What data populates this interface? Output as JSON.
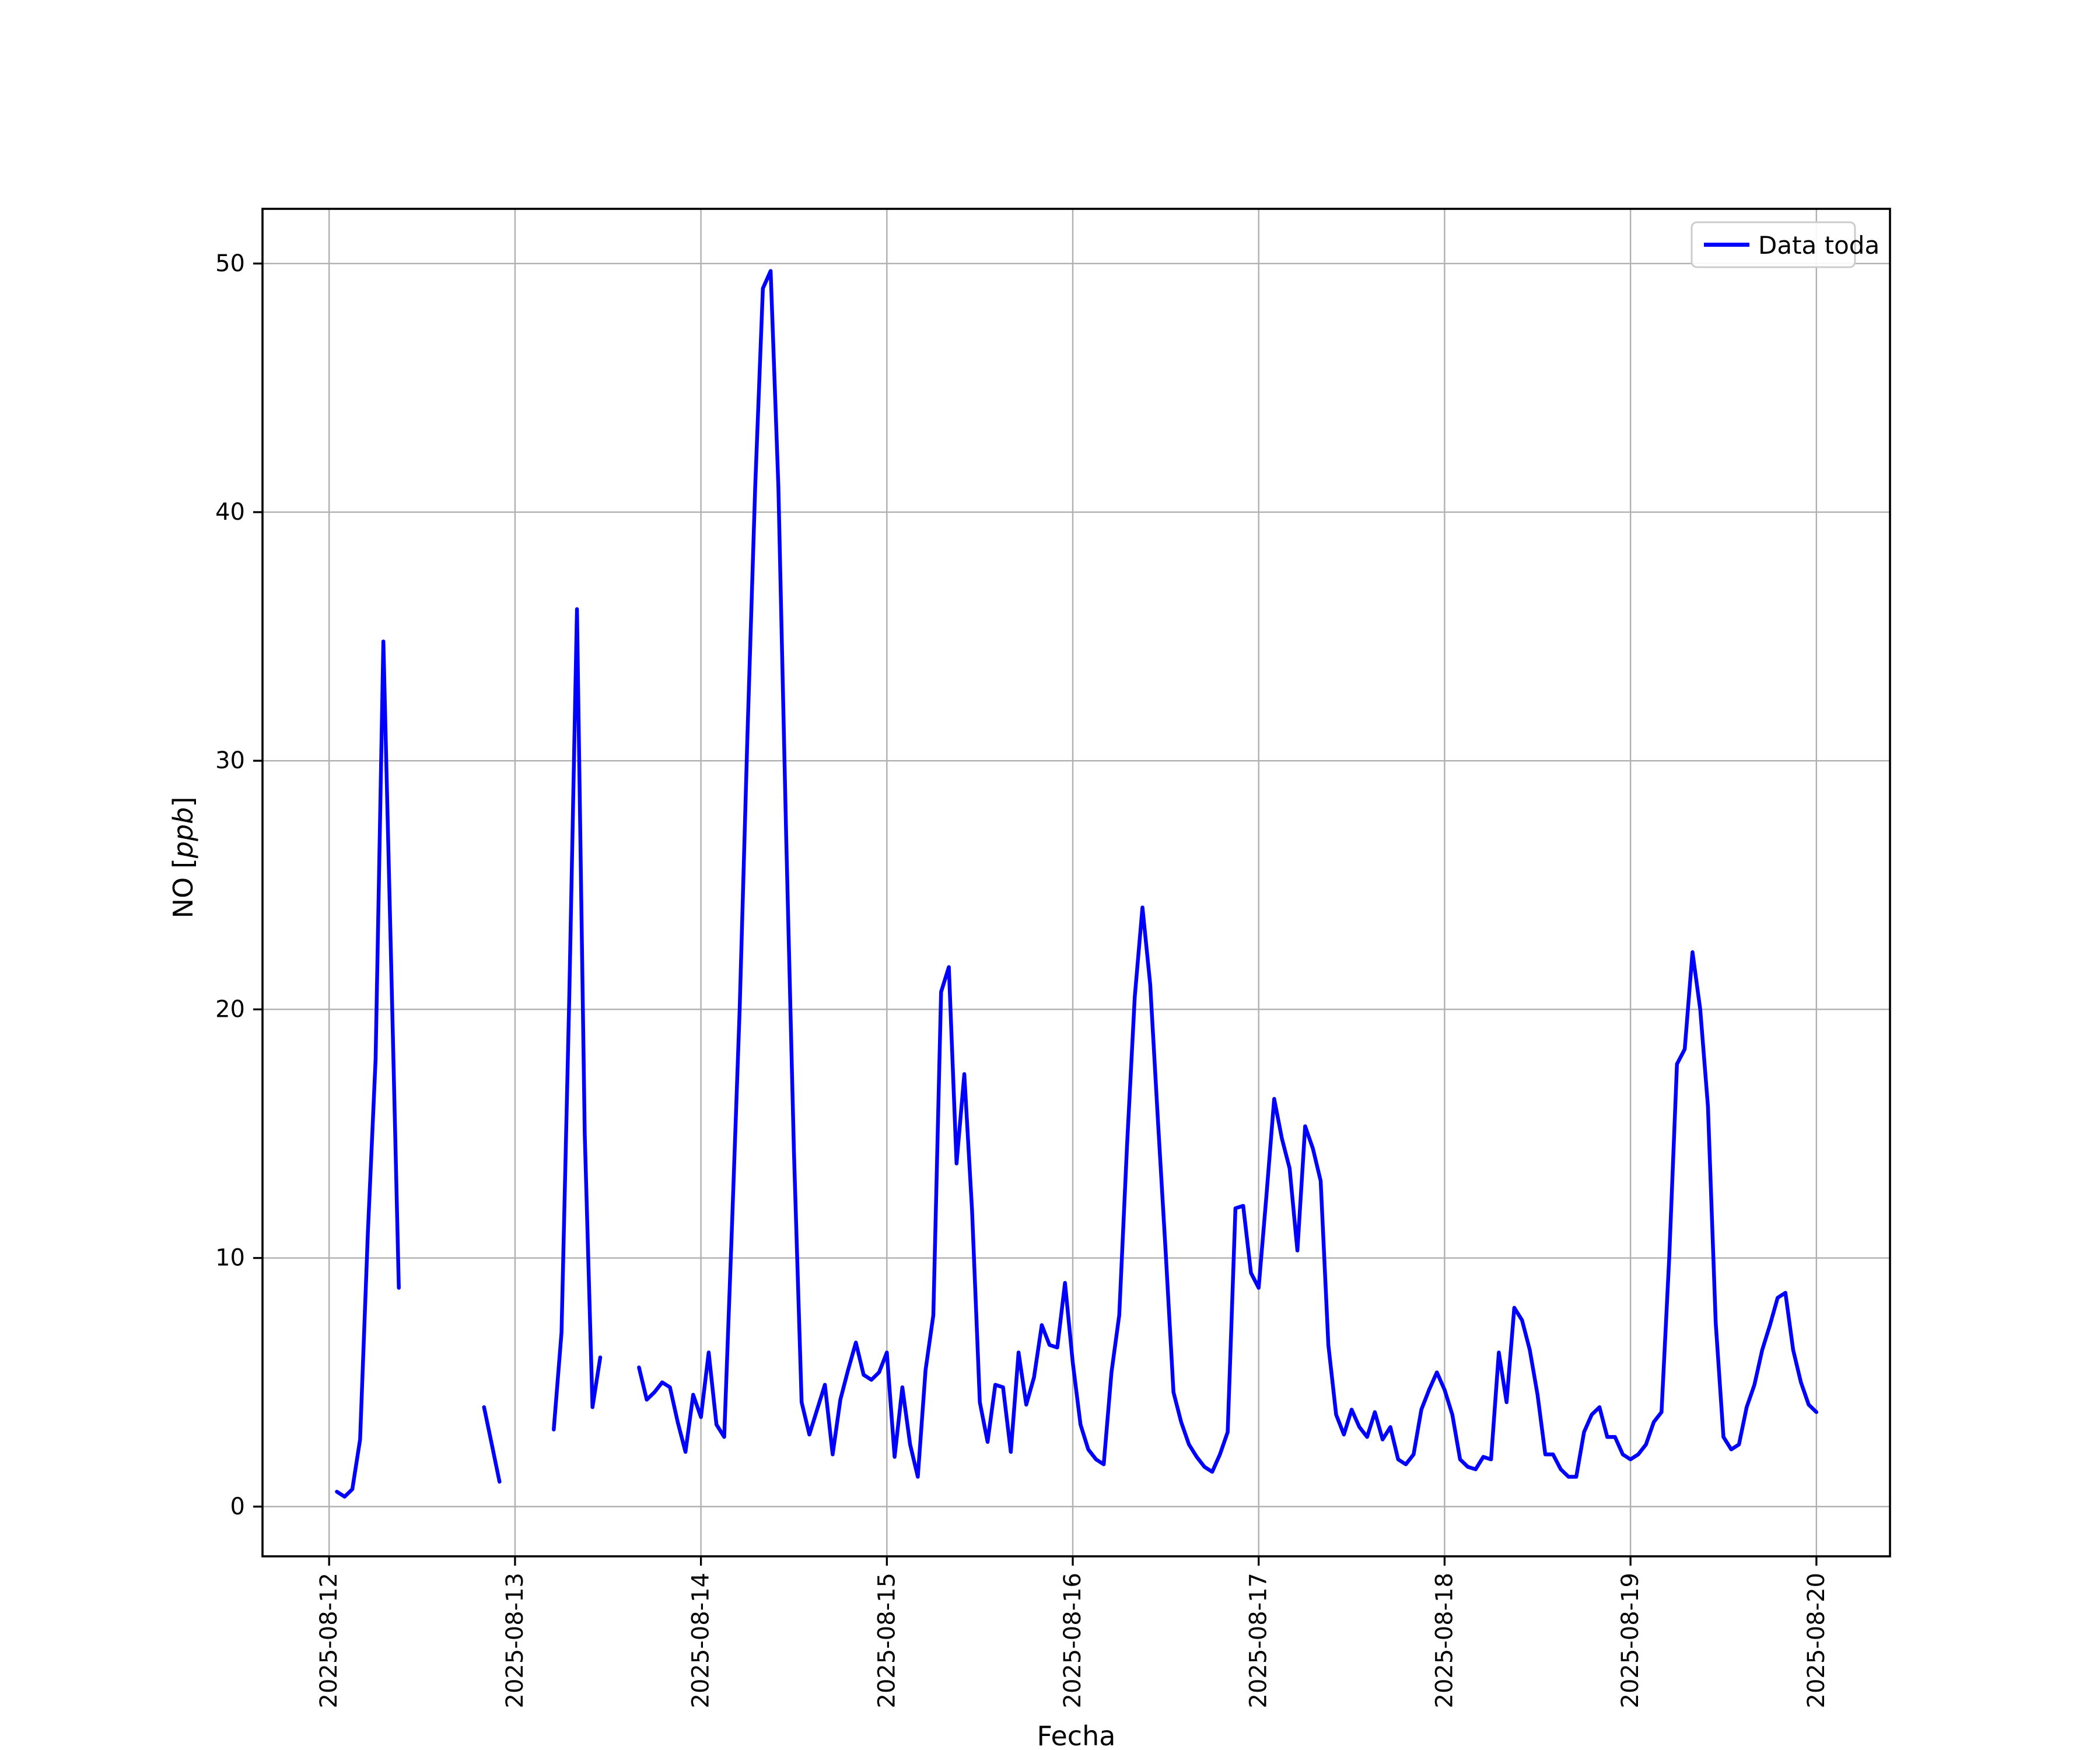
{
  "chart_data": {
    "type": "line",
    "title": "",
    "xlabel": "Fecha",
    "ylabel": "NO [ppb]",
    "ylabel_parts": {
      "prefix": "NO [",
      "italic": "ppb",
      "suffix": "]"
    },
    "legend": {
      "label": "Data toda",
      "position": "upper right"
    },
    "grid": true,
    "line_color": "#0000FF",
    "grid_color": "#b0b0b0",
    "spine_color": "#000000",
    "legend_edge_color": "#cccccc",
    "background_color": "#ffffff",
    "x_tick_labels": [
      "2025-08-12",
      "2025-08-13",
      "2025-08-14",
      "2025-08-15",
      "2025-08-16",
      "2025-08-17",
      "2025-08-18",
      "2025-08-19",
      "2025-08-20"
    ],
    "x_tick_hours": [
      0,
      24,
      48,
      72,
      96,
      120,
      144,
      168,
      192
    ],
    "y_ticks": [
      0,
      10,
      20,
      30,
      40,
      50
    ],
    "hour_zero": "2025-08-12 00:00",
    "xlim_hours": [
      -8.6,
      201.5
    ],
    "ylim": [
      -2.0,
      52.2
    ],
    "sampling": "hourly",
    "unit": "ppb",
    "segments": [
      {
        "start": "2025-08-12 01:00",
        "start_hour": 1,
        "values": [
          0.6,
          0.4,
          0.7,
          2.7,
          11.0,
          18.0,
          34.8,
          22.0,
          8.8
        ]
      },
      {
        "start": "2025-08-12 20:00",
        "start_hour": 20,
        "values": [
          4.0,
          2.5,
          1.0
        ]
      },
      {
        "start": "2025-08-13 05:00",
        "start_hour": 29,
        "values": [
          3.1,
          7.0,
          20.5,
          36.1,
          15.0,
          4.0,
          6.0
        ]
      },
      {
        "start": "2025-08-13 16:00",
        "start_hour": 40,
        "values": [
          5.6,
          4.3,
          4.6,
          5.0,
          4.8,
          3.4,
          2.2,
          4.5,
          3.6,
          6.2,
          3.3,
          2.8,
          11.2,
          20.0,
          31.0,
          41.0,
          49.0,
          49.7,
          41.0,
          27.0,
          14.3,
          4.2,
          2.9,
          3.9,
          4.9,
          2.1,
          4.3,
          5.5,
          6.6,
          5.3,
          5.1,
          5.4,
          6.2,
          2.0,
          4.8,
          2.5,
          1.2,
          5.5,
          7.7,
          20.7,
          21.7,
          13.8,
          17.4,
          11.9,
          4.2,
          2.6,
          4.9,
          4.8,
          2.2,
          6.2,
          4.1,
          5.2,
          7.3,
          6.5,
          6.4,
          9.0,
          5.8,
          3.3,
          2.3,
          1.9,
          1.7,
          5.4,
          7.7,
          14.5,
          20.5,
          24.1,
          21.0,
          15.5,
          10.2,
          4.6,
          3.4,
          2.5,
          2.0,
          1.6,
          1.4,
          2.1,
          3.0,
          12.0,
          12.1,
          9.4,
          8.8,
          12.5,
          16.4,
          14.8,
          13.6,
          10.3,
          15.3,
          14.4,
          13.1,
          6.5,
          3.7,
          2.9,
          3.9,
          3.2,
          2.8,
          3.8,
          2.7,
          3.2,
          1.9,
          1.7,
          2.1,
          3.9,
          4.7,
          5.4,
          4.7,
          3.7,
          1.9,
          1.6,
          1.5,
          2.0,
          1.9,
          6.2,
          4.2,
          8.0,
          7.5,
          6.3,
          4.5,
          2.1,
          2.1,
          1.5,
          1.2,
          1.2,
          3.0,
          3.7,
          4.0,
          2.8,
          2.8,
          2.1,
          1.9,
          2.1,
          2.5,
          3.4,
          3.8,
          10.0,
          17.8,
          18.4,
          22.3,
          20.0,
          16.1,
          7.4,
          2.8,
          2.3,
          2.5,
          4.0,
          4.9,
          6.3,
          7.3,
          8.4,
          8.6,
          6.3,
          5.0,
          4.1,
          3.8
        ]
      }
    ]
  }
}
